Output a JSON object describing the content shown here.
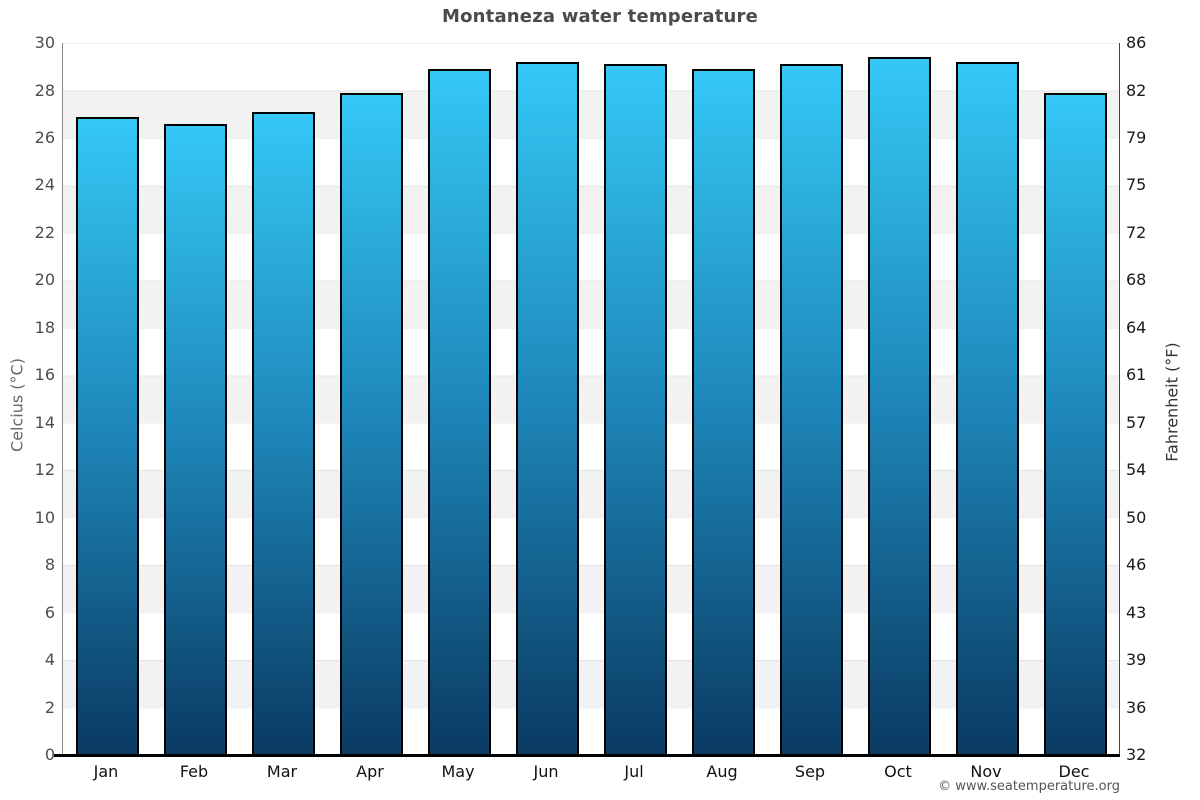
{
  "title": "Montaneza water temperature",
  "footer": {
    "text": "© www.seatemperature.org"
  },
  "chart_data": {
    "type": "bar",
    "title": "Montaneza water temperature",
    "categories": [
      "Jan",
      "Feb",
      "Mar",
      "Apr",
      "May",
      "Jun",
      "Jul",
      "Aug",
      "Sep",
      "Oct",
      "Nov",
      "Dec"
    ],
    "values": [
      26.9,
      26.6,
      27.1,
      27.9,
      28.9,
      29.2,
      29.1,
      28.9,
      29.1,
      29.4,
      29.2,
      27.9
    ],
    "unit": "°C",
    "xlabel": "",
    "ylabel_left": "Celcius (°C)",
    "ylabel_right": "Fahrenheit (°F)",
    "ylim": [
      0,
      30
    ],
    "celsius_ticks": [
      30,
      28,
      26,
      24,
      22,
      20,
      18,
      16,
      14,
      12,
      10,
      8,
      6,
      4,
      2,
      0
    ],
    "fahrenheit_ticks": [
      86,
      82,
      79,
      75,
      72,
      68,
      64,
      61,
      57,
      54,
      50,
      46,
      43,
      39,
      36,
      32
    ],
    "grid": "horizontal-bands-every-2C",
    "legend": "none",
    "colors": {
      "bar_top": "#35C8F5",
      "bar_mid": "#1E88BA",
      "bar_bottom": "#0A3A62",
      "bar_border": "#000000",
      "band": "#F2F2F2",
      "axis_line": "#000000"
    }
  }
}
